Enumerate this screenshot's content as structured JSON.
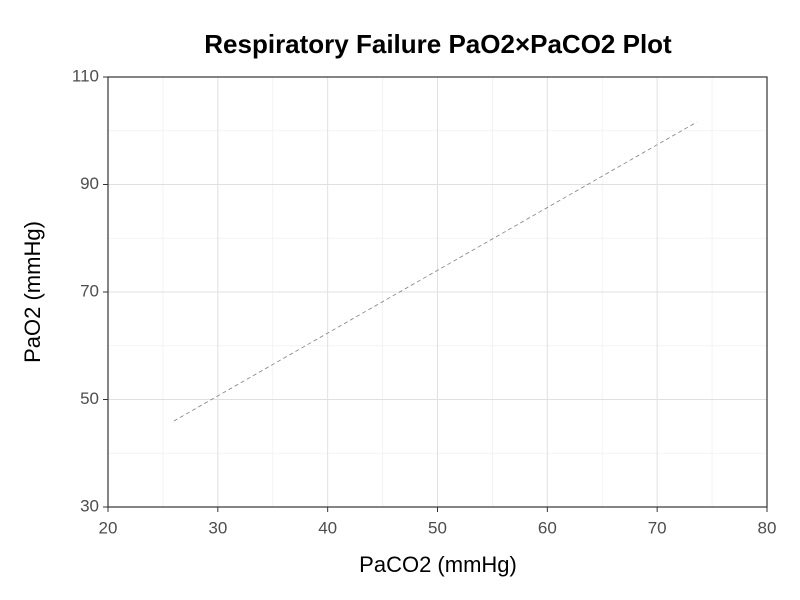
{
  "chart_data": {
    "type": "line",
    "title": "Respiratory Failure PaO2×PaCO2 Plot",
    "x_label": "PaCO2 (mmHg)",
    "y_label": "PaO2 (mmHg)",
    "x": [
      26,
      73.6
    ],
    "series": [
      {
        "color": "#808080",
        "dashed": true,
        "values": [
          46,
          101.6
        ]
      }
    ],
    "xlim": [
      20,
      80
    ],
    "xticks": [
      20,
      30,
      40,
      50,
      60,
      70,
      80
    ],
    "ylim": [
      30,
      110
    ],
    "yticks": [
      30,
      50,
      70,
      90,
      110
    ],
    "grid": true,
    "minor_grid": true
  }
}
